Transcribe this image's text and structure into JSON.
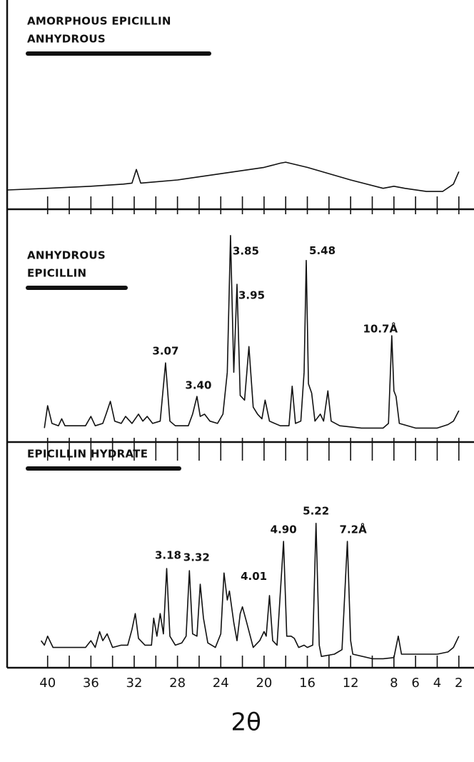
{
  "chart_data": [
    {
      "type": "line",
      "title_lines": [
        "AMORPHOUS EPICILLIN",
        "ANHYDROUS"
      ],
      "x": [
        43.7,
        40,
        36,
        33,
        32.2,
        31.8,
        31.4,
        28,
        24,
        20,
        18.5,
        18,
        16,
        12,
        9,
        8,
        7,
        5,
        3.5,
        2.5,
        2
      ],
      "values": [
        9.2,
        10,
        11,
        12,
        12.5,
        19,
        12.5,
        14,
        17,
        20,
        22,
        22.5,
        20,
        14,
        10,
        11,
        10,
        8.5,
        8.5,
        12,
        18
      ],
      "xlim": [
        44.4,
        0.6
      ],
      "ylim": [
        0,
        100
      ],
      "xtick_marks": [
        40,
        38,
        36,
        34,
        32,
        30,
        28,
        26,
        24,
        22,
        20,
        18,
        16,
        14,
        12,
        10,
        8,
        6,
        4,
        2
      ],
      "color": "#111111"
    },
    {
      "type": "line",
      "title_lines": [
        "ANHYDROUS",
        "EPICILLIN"
      ],
      "x": [
        40.3,
        40,
        39.6,
        39,
        38.7,
        38.4,
        36.5,
        36,
        35.6,
        34.9,
        34.6,
        34.2,
        33.8,
        33.2,
        32.8,
        32.2,
        31.6,
        31.2,
        30.8,
        30.3,
        29.6,
        29.1,
        28.7,
        28.2,
        27,
        26.6,
        26.2,
        25.9,
        25.5,
        25,
        24.3,
        23.8,
        23.4,
        23.1,
        22.8,
        22.5,
        22.2,
        21.8,
        21.4,
        21,
        20.6,
        20.2,
        19.9,
        19.5,
        18.5,
        17.7,
        17.4,
        17.1,
        16.6,
        16.3,
        16.1,
        15.9,
        15.6,
        15.3,
        14.8,
        14.5,
        14.1,
        13.8,
        13,
        11,
        9,
        8.5,
        8.2,
        8,
        7.8,
        7.5,
        6,
        4,
        3,
        2.5,
        2
      ],
      "values": [
        6,
        15.6,
        8,
        7,
        10,
        7,
        7,
        11,
        7,
        8,
        12,
        17.5,
        9,
        8,
        11,
        8,
        12,
        9,
        11,
        8,
        9,
        34,
        9,
        7,
        7,
        12,
        19.6,
        11,
        12,
        9,
        8,
        12,
        30,
        88.7,
        30,
        67.8,
        20,
        18,
        41,
        15,
        12,
        10,
        18,
        9,
        7,
        7,
        24,
        8,
        9,
        30,
        78,
        25,
        21,
        9,
        12,
        9,
        22,
        9,
        7,
        6,
        6,
        8,
        45.7,
        22,
        19.6,
        8,
        6,
        6,
        7.5,
        9,
        13.5
      ],
      "annotations": [
        {
          "text": "3.07",
          "x": 29.1
        },
        {
          "text": "3.40",
          "x": 26.2
        },
        {
          "text": "3.85",
          "x": 23.1
        },
        {
          "text": "3.95",
          "x": 22.5
        },
        {
          "text": "5.48",
          "x": 16.1
        },
        {
          "text": "10.7Å",
          "x": 8.2
        }
      ],
      "xlim": [
        44.4,
        0.6
      ],
      "ylim": [
        0,
        100
      ],
      "xtick_marks": [
        40,
        38,
        36,
        34,
        32,
        30,
        28,
        26,
        24,
        22,
        20,
        18,
        16,
        14,
        12,
        10,
        8,
        6,
        4,
        2
      ],
      "color": "#111111"
    },
    {
      "type": "line",
      "title_lines": [
        "EPICILLIN HYDRATE"
      ],
      "x": [
        40.6,
        40.3,
        40,
        39.5,
        38,
        36.5,
        36,
        35.6,
        35.2,
        34.9,
        34.5,
        34,
        33.2,
        32.6,
        32.2,
        31.9,
        31.6,
        31,
        30.4,
        30.2,
        29.9,
        29.6,
        29.3,
        29,
        28.7,
        28.2,
        27.6,
        27.2,
        26.9,
        26.6,
        26.2,
        25.9,
        25.6,
        25.2,
        24.5,
        24,
        23.7,
        23.4,
        23.2,
        22.8,
        22.5,
        22.2,
        22,
        21.6,
        21,
        20.4,
        20,
        19.8,
        19.5,
        19.2,
        18.8,
        18.2,
        17.9,
        17.5,
        17.2,
        16.8,
        16.3,
        16,
        15.5,
        15.2,
        14.9,
        14.7,
        13.5,
        12.8,
        12.3,
        12,
        11.8,
        10,
        9,
        8,
        7.6,
        7.3,
        6,
        4,
        3,
        2.5,
        2
      ],
      "values": [
        12,
        10,
        14,
        9,
        9,
        9,
        12,
        9,
        16,
        12,
        15,
        9,
        10,
        10,
        17,
        24,
        13,
        10,
        10,
        22,
        14,
        24,
        15,
        44,
        14,
        10,
        11,
        14,
        43,
        15,
        14,
        37,
        22,
        11,
        9,
        15,
        42,
        30,
        34,
        20,
        12,
        24,
        27,
        20,
        9,
        12,
        16,
        14,
        32,
        12,
        10,
        56,
        14,
        14,
        13,
        9,
        10,
        9,
        10,
        64,
        10,
        5,
        6,
        8,
        56,
        12,
        6,
        4,
        4,
        4.5,
        14,
        6,
        6,
        6,
        7,
        9,
        14
      ],
      "annotations": [
        {
          "text": "3.18",
          "x": 29
        },
        {
          "text": "3.32",
          "x": 26.9
        },
        {
          "text": "4.01",
          "x": 22
        },
        {
          "text": "4.90",
          "x": 18.2
        },
        {
          "text": "5.22",
          "x": 15.2
        },
        {
          "text": "7.2Å",
          "x": 12.3
        }
      ],
      "xlim": [
        44.4,
        0.6
      ],
      "ylim": [
        0,
        100
      ],
      "xtick_marks": [
        40,
        38,
        36,
        34,
        32,
        30,
        28,
        26,
        24,
        22,
        20,
        18,
        16,
        14,
        12,
        10,
        8,
        6,
        4,
        2
      ],
      "xticks": [
        40,
        36,
        32,
        28,
        24,
        20,
        16,
        12,
        8,
        6,
        4,
        2
      ],
      "xlabel": "2θ",
      "color": "#111111"
    }
  ]
}
